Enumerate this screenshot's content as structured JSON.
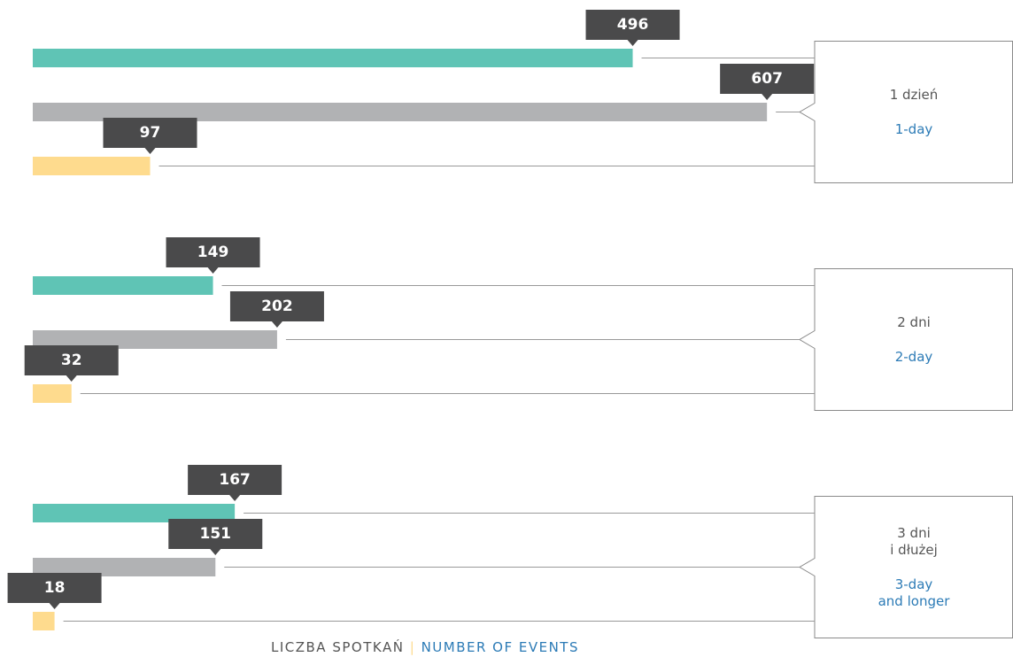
{
  "chart_data": {
    "type": "bar",
    "categories": [
      "1 dzień",
      "2 dni",
      "3 dni\ni dłużej"
    ],
    "categories_en": [
      "1-day",
      "2-day",
      "3-day\nand longer"
    ],
    "series": [
      {
        "color": "#5fc4b5",
        "values": [
          496,
          149,
          167
        ]
      },
      {
        "color": "#b1b2b4",
        "values": [
          607,
          202,
          151
        ]
      },
      {
        "color": "#fedb8e",
        "values": [
          97,
          32,
          18
        ]
      }
    ],
    "label_color": "#4a4a4b",
    "xlabel": "LICZBA SPOTKAŃ",
    "xlabel_en": "NUMBER OF EVENTS"
  }
}
